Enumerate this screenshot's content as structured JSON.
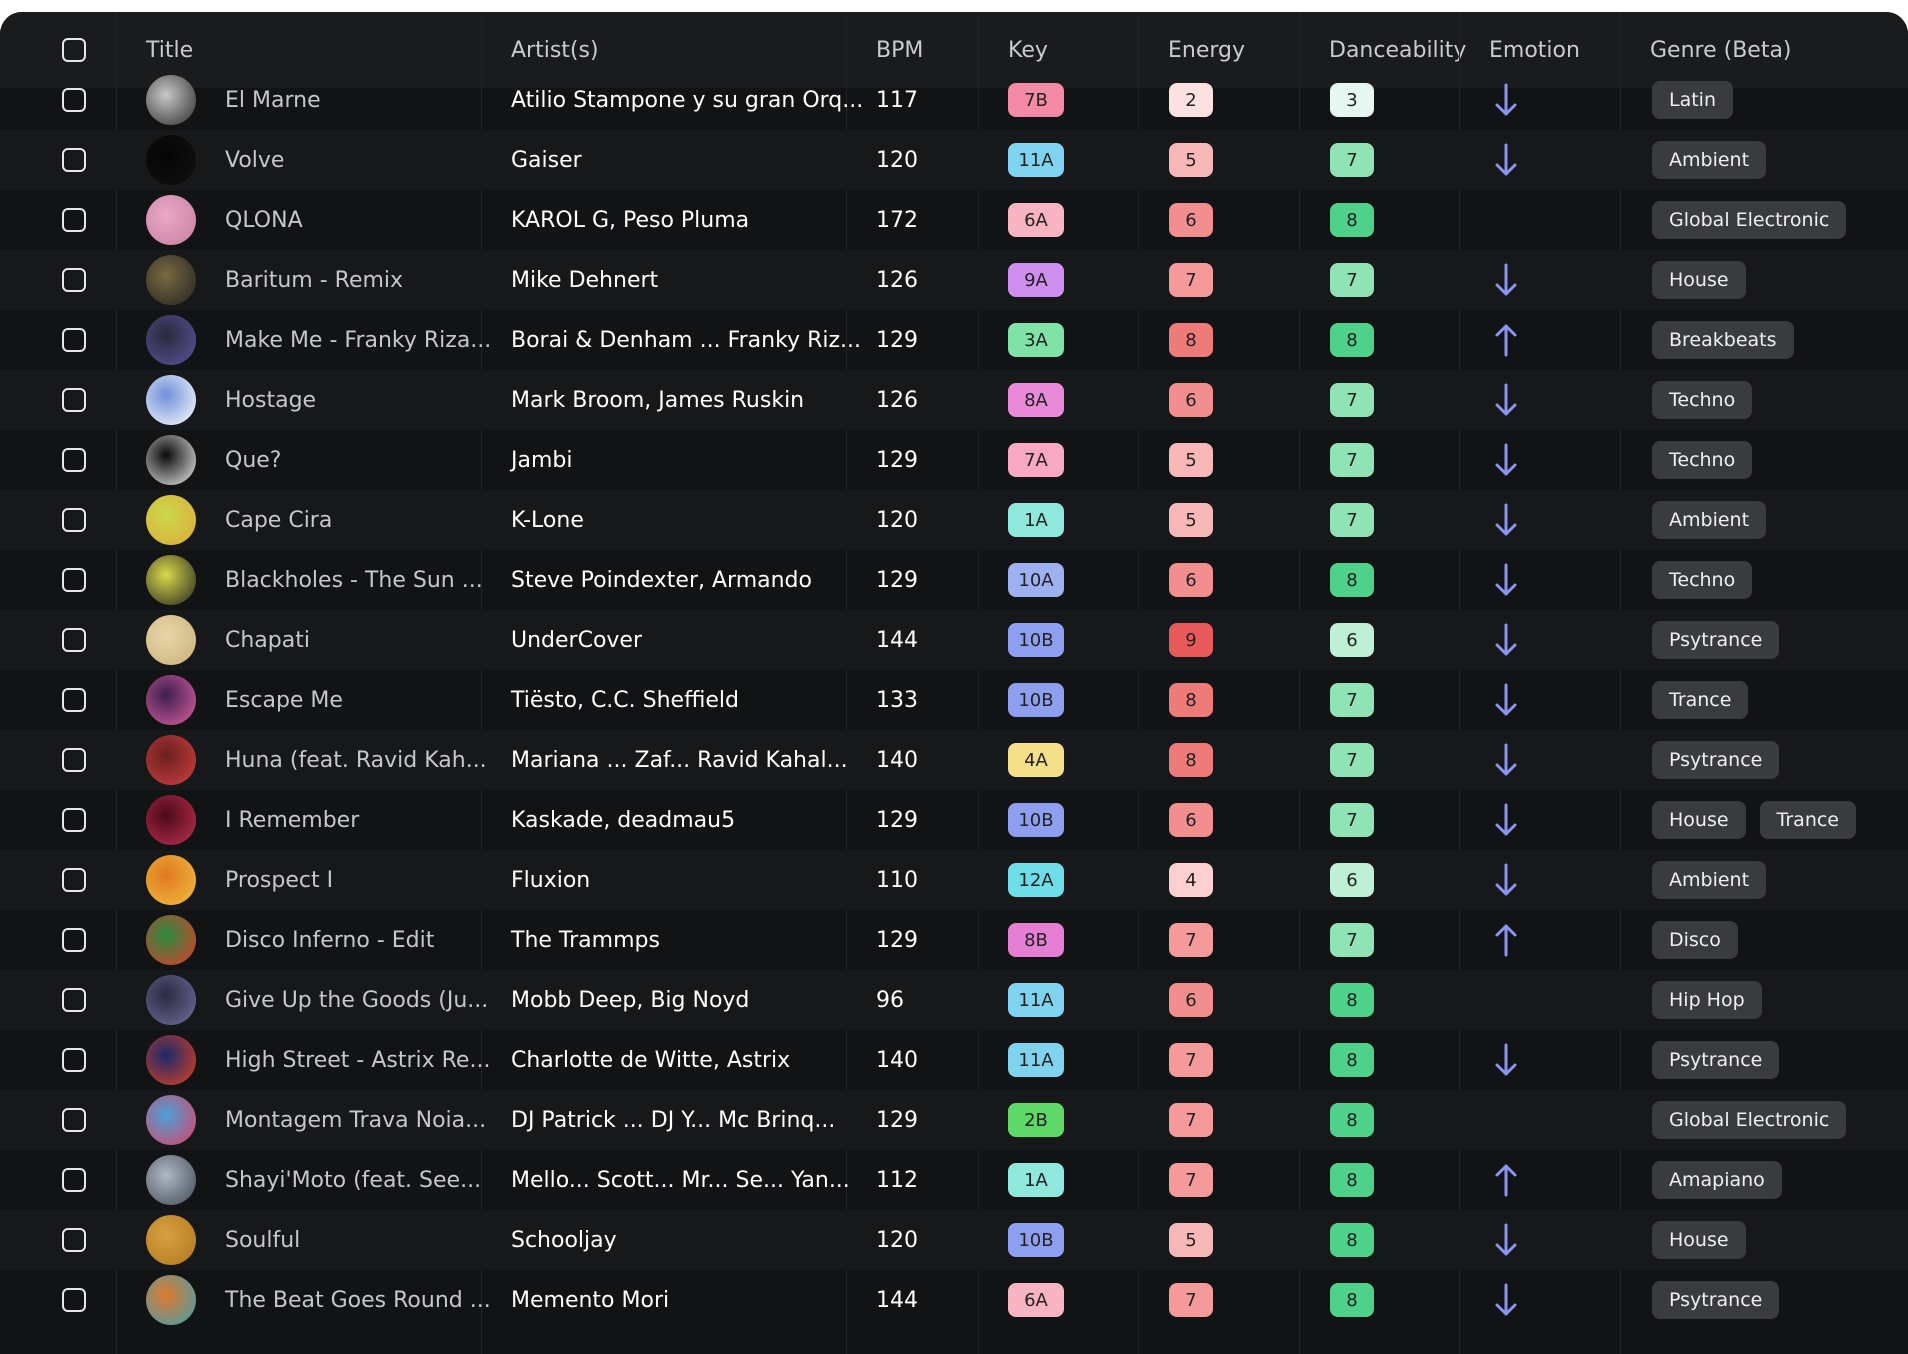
{
  "columns": {
    "title": "Title",
    "artists": "Artist(s)",
    "bpm": "BPM",
    "key": "Key",
    "energy": "Energy",
    "danceability": "Danceability",
    "emotion": "Emotion",
    "genre": "Genre (Beta)"
  },
  "colors": {
    "background": "#121314",
    "row_alt": "#17181a",
    "arrow": "#8b95f2",
    "genre_tag": "#3a3b3f"
  },
  "tracks": [
    {
      "title": "El Marne",
      "artists": "Atilio Stampone y su gran Orq...",
      "bpm": "117",
      "key": "7B",
      "key_color": "#f58aa6",
      "energy": "2",
      "energy_color": "#fde0e0",
      "dance": "3",
      "dance_color": "#e6f7ef",
      "emotion": "down",
      "genres": [
        "Latin"
      ],
      "avatar": [
        "#c8c8c8",
        "#2a2a2a"
      ]
    },
    {
      "title": "Volve",
      "artists": "Gaiser",
      "bpm": "120",
      "key": "11A",
      "key_color": "#7fd3ef",
      "energy": "5",
      "energy_color": "#f9b8b8",
      "dance": "7",
      "dance_color": "#8fe3b4",
      "emotion": "down",
      "genres": [
        "Ambient"
      ],
      "avatar": [
        "#050505",
        "#111111"
      ]
    },
    {
      "title": "QLONA",
      "artists": "KAROL G,  Peso Pluma",
      "bpm": "172",
      "key": "6A",
      "key_color": "#f8b4c0",
      "energy": "6",
      "energy_color": "#f38e8e",
      "dance": "8",
      "dance_color": "#4fd18a",
      "emotion": "",
      "genres": [
        "Global Electronic"
      ],
      "avatar": [
        "#e9a9c4",
        "#c77da2"
      ]
    },
    {
      "title": "Baritum - Remix",
      "artists": "Mike Dehnert",
      "bpm": "126",
      "key": "9A",
      "key_color": "#cf8ff0",
      "energy": "7",
      "energy_color": "#f59a9a",
      "dance": "7",
      "dance_color": "#8fe3b4",
      "emotion": "down",
      "genres": [
        "House"
      ],
      "avatar": [
        "#7a6a40",
        "#222"
      ]
    },
    {
      "title": "Make Me - Franky Riza...",
      "artists": "Borai & Denham ...   Franky Riz...",
      "bpm": "129",
      "key": "3A",
      "key_color": "#7fe3a8",
      "energy": "8",
      "energy_color": "#ef7a7a",
      "dance": "8",
      "dance_color": "#4fd18a",
      "emotion": "up",
      "genres": [
        "Breakbeats"
      ],
      "avatar": [
        "#2a2a3a",
        "#5a55a0"
      ]
    },
    {
      "title": "Hostage",
      "artists": "Mark Broom,  James Ruskin",
      "bpm": "126",
      "key": "8A",
      "key_color": "#e88ad8",
      "energy": "6",
      "energy_color": "#f38e8e",
      "dance": "7",
      "dance_color": "#8fe3b4",
      "emotion": "down",
      "genres": [
        "Techno"
      ],
      "avatar": [
        "#6f8fd8",
        "#ffffff"
      ]
    },
    {
      "title": "Que?",
      "artists": "Jambi",
      "bpm": "129",
      "key": "7A",
      "key_color": "#f8a8c2",
      "energy": "5",
      "energy_color": "#f9b8b8",
      "dance": "7",
      "dance_color": "#8fe3b4",
      "emotion": "down",
      "genres": [
        "Techno"
      ],
      "avatar": [
        "#0a0a0a",
        "#eeeeee"
      ]
    },
    {
      "title": "Cape Cira",
      "artists": "K-Lone",
      "bpm": "120",
      "key": "1A",
      "key_color": "#8fe8dc",
      "energy": "5",
      "energy_color": "#f9b8b8",
      "dance": "7",
      "dance_color": "#8fe3b4",
      "emotion": "down",
      "genres": [
        "Ambient"
      ],
      "avatar": [
        "#c9d94a",
        "#e0a83a"
      ]
    },
    {
      "title": "Blackholes - The Sun ...",
      "artists": "Steve Poindexter,  Armando",
      "bpm": "129",
      "key": "10A",
      "key_color": "#9db0f2",
      "energy": "6",
      "energy_color": "#f38e8e",
      "dance": "8",
      "dance_color": "#4fd18a",
      "emotion": "down",
      "genres": [
        "Techno"
      ],
      "avatar": [
        "#d9d94a",
        "#222"
      ]
    },
    {
      "title": "Chapati",
      "artists": "UnderCover",
      "bpm": "144",
      "key": "10B",
      "key_color": "#8f9ff0",
      "energy": "9",
      "energy_color": "#e85a5a",
      "dance": "6",
      "dance_color": "#bff0d6",
      "emotion": "down",
      "genres": [
        "Psytrance"
      ],
      "avatar": [
        "#e8d6a8",
        "#c9b07a"
      ]
    },
    {
      "title": "Escape Me",
      "artists": "Tiësto,  C.C. Sheffield",
      "bpm": "133",
      "key": "10B",
      "key_color": "#8f9ff0",
      "energy": "8",
      "energy_color": "#ef7a7a",
      "dance": "7",
      "dance_color": "#8fe3b4",
      "emotion": "down",
      "genres": [
        "Trance"
      ],
      "avatar": [
        "#3a2050",
        "#e05fa0"
      ]
    },
    {
      "title": "Huna (feat. Ravid Kah...",
      "artists": "Mariana ...   Zaf...   Ravid Kahal...",
      "bpm": "140",
      "key": "4A",
      "key_color": "#f5e08a",
      "energy": "8",
      "energy_color": "#ef7a7a",
      "dance": "7",
      "dance_color": "#8fe3b4",
      "emotion": "down",
      "genres": [
        "Psytrance"
      ],
      "avatar": [
        "#6a2020",
        "#d04040"
      ]
    },
    {
      "title": "I Remember",
      "artists": "Kaskade,  deadmau5",
      "bpm": "129",
      "key": "10B",
      "key_color": "#8f9ff0",
      "energy": "6",
      "energy_color": "#f38e8e",
      "dance": "7",
      "dance_color": "#8fe3b4",
      "emotion": "down",
      "genres": [
        "House",
        "Trance"
      ],
      "avatar": [
        "#4a0a1a",
        "#c03050"
      ]
    },
    {
      "title": "Prospect I",
      "artists": "Fluxion",
      "bpm": "110",
      "key": "12A",
      "key_color": "#6fdde8",
      "energy": "4",
      "energy_color": "#fcd0d0",
      "dance": "6",
      "dance_color": "#bff0d6",
      "emotion": "down",
      "genres": [
        "Ambient"
      ],
      "avatar": [
        "#e07820",
        "#f0c040"
      ]
    },
    {
      "title": "Disco Inferno - Edit",
      "artists": "The Trammps",
      "bpm": "129",
      "key": "8B",
      "key_color": "#e57fd4",
      "energy": "7",
      "energy_color": "#f59a9a",
      "dance": "7",
      "dance_color": "#8fe3b4",
      "emotion": "up",
      "genres": [
        "Disco"
      ],
      "avatar": [
        "#2a8a40",
        "#e03a2a"
      ]
    },
    {
      "title": "Give Up the Goods (Ju...",
      "artists": "Mobb Deep,  Big Noyd",
      "bpm": "96",
      "key": "11A",
      "key_color": "#7fd3ef",
      "energy": "6",
      "energy_color": "#f38e8e",
      "dance": "8",
      "dance_color": "#4fd18a",
      "emotion": "",
      "genres": [
        "Hip Hop"
      ],
      "avatar": [
        "#2a2a40",
        "#7070a0"
      ]
    },
    {
      "title": "High Street - Astrix Re...",
      "artists": "Charlotte de Witte,  Astrix",
      "bpm": "140",
      "key": "11A",
      "key_color": "#7fd3ef",
      "energy": "7",
      "energy_color": "#f59a9a",
      "dance": "8",
      "dance_color": "#4fd18a",
      "emotion": "down",
      "genres": [
        "Psytrance"
      ],
      "avatar": [
        "#1a2a6a",
        "#e04020"
      ]
    },
    {
      "title": "Montagem Trava Noia...",
      "artists": "DJ Patrick ...   DJ Y...   Mc Brinq...",
      "bpm": "129",
      "key": "2B",
      "key_color": "#5fd86a",
      "energy": "7",
      "energy_color": "#f59a9a",
      "dance": "8",
      "dance_color": "#4fd18a",
      "emotion": "",
      "genres": [
        "Global Electronic"
      ],
      "avatar": [
        "#4aa0d8",
        "#e04060"
      ]
    },
    {
      "title": "Shayi'Moto (feat. See...",
      "artists": "Mello...   Scott...   Mr...   Se...   Yan...",
      "bpm": "112",
      "key": "1A",
      "key_color": "#8fe8dc",
      "energy": "7",
      "energy_color": "#f59a9a",
      "dance": "8",
      "dance_color": "#4fd18a",
      "emotion": "up",
      "genres": [
        "Amapiano"
      ],
      "avatar": [
        "#b0b8c8",
        "#404850"
      ]
    },
    {
      "title": "Soulful",
      "artists": "Schooljay",
      "bpm": "120",
      "key": "10B",
      "key_color": "#8f9ff0",
      "energy": "5",
      "energy_color": "#f9b8b8",
      "dance": "8",
      "dance_color": "#4fd18a",
      "emotion": "down",
      "genres": [
        "House"
      ],
      "avatar": [
        "#d8a040",
        "#b07820"
      ]
    },
    {
      "title": "The Beat Goes Round ...",
      "artists": "Memento Mori",
      "bpm": "144",
      "key": "6A",
      "key_color": "#f8b4c0",
      "energy": "7",
      "energy_color": "#f59a9a",
      "dance": "8",
      "dance_color": "#4fd18a",
      "emotion": "down",
      "genres": [
        "Psytrance"
      ],
      "avatar": [
        "#e07a30",
        "#3aa0b0"
      ]
    }
  ]
}
